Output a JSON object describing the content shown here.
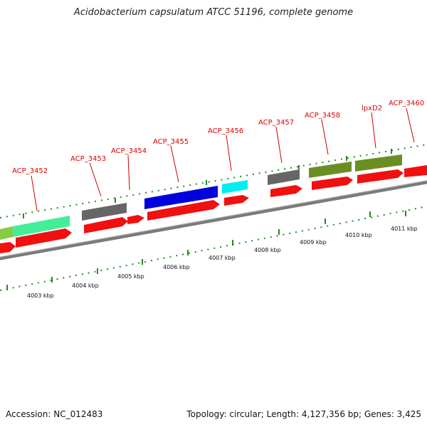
{
  "title": "Acidobacterium capsulatum ATCC 51196, complete genome",
  "accession": "Accession: NC_012483",
  "topology": "Topology: circular; Length: 4,127,356 bp; Genes: 3,425",
  "colors": {
    "gene_label": "#e00000",
    "cds_arrow": "#f01010",
    "backbone": "#7a7a7a",
    "tick": "#228b22"
  },
  "gene_labels": [
    "ACP_3452",
    "ACP_3453",
    "ACP_3454",
    "ACP_3455",
    "ACP_3456",
    "ACP_3457",
    "ACP_3458",
    "lpxD2",
    "ACP_3460"
  ],
  "kbp_labels": [
    "4003 kbp",
    "4004 kbp",
    "4005 kbp",
    "4006 kbp",
    "4007 kbp",
    "4008 kbp",
    "4009 kbp",
    "4010 kbp",
    "4011 kbp"
  ],
  "feature_colors": [
    "#88cc44",
    "#44ee99",
    "#666666",
    "#0000dd",
    "#00eeee",
    "#666666",
    "#6b8e23",
    "#6b8e23"
  ]
}
